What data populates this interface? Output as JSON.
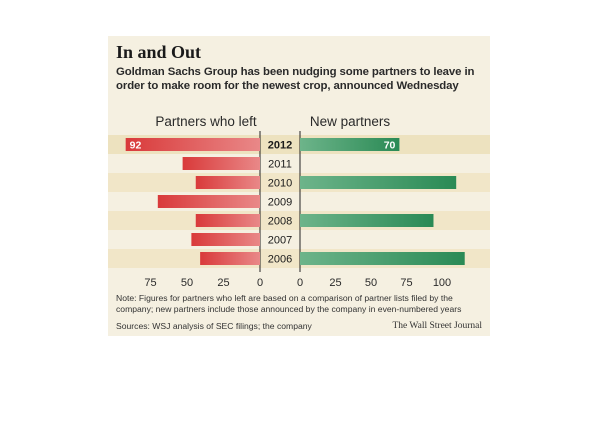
{
  "header": {
    "title": "In and Out",
    "subtitle": "Goldman Sachs Group has been nudging some partners to leave in order to make room for the newest crop, announced Wednesday"
  },
  "footer": {
    "note": "Note: Figures for partners who left are based on a comparison of partner lists filed by the company; new partners include those announced by the company in even-numbered years",
    "sources": "Sources: WSJ analysis of SEC filings; the company",
    "credit": "The Wall Street Journal"
  },
  "colors": {
    "left_bar": "#d93a3a",
    "right_bar": "#2a8a55",
    "highlight_row": "#ede2bf",
    "band_row": "#f1e6c8"
  },
  "chart_data": {
    "type": "bar",
    "orientation": "horizontal-diverging",
    "categories": [
      "2012",
      "2011",
      "2010",
      "2009",
      "2008",
      "2007",
      "2006"
    ],
    "highlight_category": "2012",
    "series": [
      {
        "name": "Partners who left",
        "values": [
          92,
          53,
          44,
          70,
          44,
          47,
          41
        ],
        "data_labels": [
          "92",
          "",
          "",
          "",
          "",
          "",
          ""
        ]
      },
      {
        "name": "New partners",
        "values": [
          70,
          null,
          110,
          null,
          94,
          null,
          116
        ],
        "data_labels": [
          "70",
          "",
          "",
          "",
          "",
          "",
          ""
        ]
      }
    ],
    "left_axis": {
      "ticks": [
        "75",
        "50",
        "25",
        "0"
      ],
      "tick_values": [
        75,
        50,
        25,
        0
      ],
      "range": [
        0,
        100
      ]
    },
    "right_axis": {
      "ticks": [
        "0",
        "25",
        "50",
        "75",
        "100"
      ],
      "tick_values": [
        0,
        25,
        50,
        75,
        100
      ],
      "range": [
        0,
        120
      ]
    },
    "grid": false,
    "legend": "column headings"
  }
}
